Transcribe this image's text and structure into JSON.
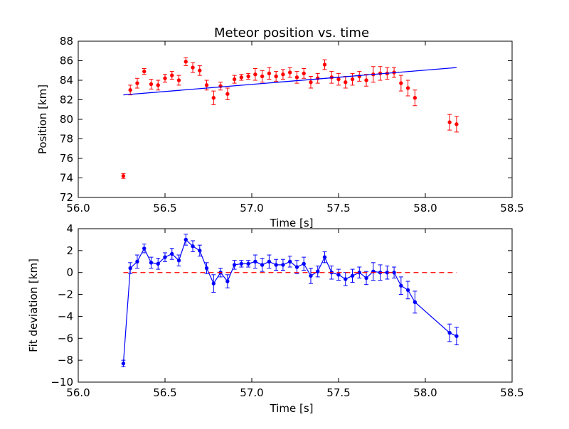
{
  "chart_data": [
    {
      "type": "scatter",
      "title": "Meteor position vs. time",
      "xlabel": "Time [s]",
      "ylabel": "Position [km]",
      "xlim": [
        56.0,
        58.5
      ],
      "ylim": [
        72,
        88
      ],
      "xticks": [
        56.0,
        56.5,
        57.0,
        57.5,
        58.0,
        58.5
      ],
      "xtick_labels": [
        "56.0",
        "56.5",
        "57.0",
        "57.5",
        "58.0",
        "58.5"
      ],
      "yticks": [
        72,
        74,
        76,
        78,
        80,
        82,
        84,
        86,
        88
      ],
      "ytick_labels": [
        "72",
        "74",
        "76",
        "78",
        "80",
        "82",
        "84",
        "86",
        "88"
      ],
      "grid": false,
      "series": [
        {
          "kind": "errorbar-points",
          "color": "#ff0000",
          "x": [
            56.26,
            56.3,
            56.34,
            56.38,
            56.42,
            56.46,
            56.5,
            56.54,
            56.58,
            56.62,
            56.66,
            56.7,
            56.74,
            56.78,
            56.82,
            56.86,
            56.9,
            56.94,
            56.98,
            57.02,
            57.06,
            57.1,
            57.14,
            57.18,
            57.22,
            57.26,
            57.3,
            57.34,
            57.38,
            57.42,
            57.46,
            57.5,
            57.54,
            57.58,
            57.62,
            57.66,
            57.7,
            57.74,
            57.78,
            57.82,
            57.86,
            57.9,
            57.94,
            58.14,
            58.18
          ],
          "y": [
            74.2,
            83.0,
            83.7,
            84.9,
            83.6,
            83.5,
            84.2,
            84.5,
            84.0,
            85.9,
            85.3,
            85.0,
            83.5,
            82.2,
            83.4,
            82.6,
            84.1,
            84.3,
            84.4,
            84.6,
            84.4,
            84.7,
            84.4,
            84.6,
            84.8,
            84.3,
            84.7,
            83.8,
            84.2,
            85.6,
            84.3,
            84.1,
            83.8,
            84.1,
            84.4,
            84.0,
            84.6,
            84.7,
            84.7,
            84.8,
            83.7,
            83.2,
            82.2,
            79.7,
            79.5
          ],
          "yerr": [
            0.25,
            0.5,
            0.5,
            0.3,
            0.5,
            0.5,
            0.4,
            0.4,
            0.5,
            0.4,
            0.5,
            0.5,
            0.5,
            0.7,
            0.4,
            0.6,
            0.4,
            0.3,
            0.3,
            0.6,
            0.6,
            0.6,
            0.5,
            0.5,
            0.5,
            0.6,
            0.5,
            0.6,
            0.5,
            0.5,
            0.6,
            0.6,
            0.6,
            0.6,
            0.5,
            0.6,
            0.8,
            0.7,
            0.6,
            0.5,
            0.8,
            0.8,
            0.8,
            0.8,
            0.8
          ]
        },
        {
          "kind": "line",
          "color": "#0000ff",
          "x": [
            56.26,
            58.18
          ],
          "y": [
            82.5,
            85.3
          ]
        }
      ]
    },
    {
      "type": "line",
      "title": "",
      "xlabel": "Time [s]",
      "ylabel": "Fit deviation [km]",
      "xlim": [
        56.0,
        58.5
      ],
      "ylim": [
        -10,
        4
      ],
      "xticks": [
        56.0,
        56.5,
        57.0,
        57.5,
        58.0,
        58.5
      ],
      "xtick_labels": [
        "56.0",
        "56.5",
        "57.0",
        "57.5",
        "58.0",
        "58.5"
      ],
      "yticks": [
        -10,
        -8,
        -6,
        -4,
        -2,
        0,
        2,
        4
      ],
      "ytick_labels": [
        "−10",
        "−8",
        "−6",
        "−4",
        "−2",
        "0",
        "2",
        "4"
      ],
      "grid": false,
      "series": [
        {
          "kind": "errorbar-line",
          "color": "#0000ff",
          "x": [
            56.26,
            56.3,
            56.34,
            56.38,
            56.42,
            56.46,
            56.5,
            56.54,
            56.58,
            56.62,
            56.66,
            56.7,
            56.74,
            56.78,
            56.82,
            56.86,
            56.9,
            56.94,
            56.98,
            57.02,
            57.06,
            57.1,
            57.14,
            57.18,
            57.22,
            57.26,
            57.3,
            57.34,
            57.38,
            57.42,
            57.46,
            57.5,
            57.54,
            57.58,
            57.62,
            57.66,
            57.7,
            57.74,
            57.78,
            57.82,
            57.86,
            57.9,
            57.94,
            58.14,
            58.18
          ],
          "y": [
            -8.3,
            0.4,
            1.0,
            2.2,
            0.9,
            0.8,
            1.4,
            1.7,
            1.1,
            3.0,
            2.4,
            2.0,
            0.4,
            -1.0,
            0.0,
            -0.8,
            0.7,
            0.8,
            0.8,
            1.0,
            0.7,
            1.0,
            0.7,
            0.7,
            1.0,
            0.5,
            0.8,
            -0.3,
            0.1,
            1.4,
            0.0,
            -0.2,
            -0.6,
            -0.3,
            0.0,
            -0.5,
            0.1,
            0.0,
            0.0,
            0.0,
            -1.2,
            -1.6,
            -2.7,
            -5.5,
            -5.8
          ],
          "yerr": [
            0.3,
            0.5,
            0.6,
            0.4,
            0.5,
            0.5,
            0.4,
            0.5,
            0.5,
            0.5,
            0.5,
            0.5,
            0.5,
            0.8,
            0.4,
            0.6,
            0.4,
            0.3,
            0.3,
            0.6,
            0.6,
            0.6,
            0.5,
            0.5,
            0.5,
            0.6,
            0.6,
            0.7,
            0.5,
            0.5,
            0.6,
            0.5,
            0.6,
            0.6,
            0.5,
            0.6,
            0.8,
            0.7,
            0.6,
            0.5,
            0.8,
            0.8,
            1.0,
            0.8,
            0.8
          ]
        },
        {
          "kind": "dashed-line",
          "color": "#ff0000",
          "x": [
            56.26,
            58.18
          ],
          "y": [
            0,
            0
          ]
        }
      ]
    }
  ]
}
